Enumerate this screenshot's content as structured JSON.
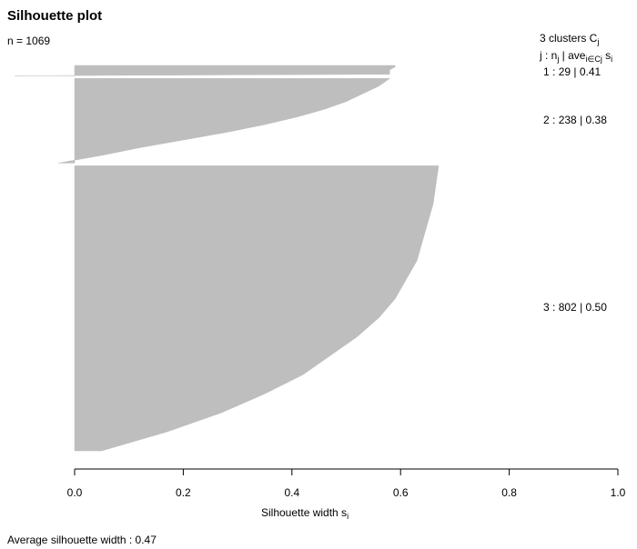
{
  "chart_data": {
    "type": "silhouette",
    "title": "Silhouette plot",
    "subtitle": "n = 1069",
    "legend_title": [
      "3  clusters  C",
      "j"
    ],
    "legend_header": [
      "j :  n",
      "j",
      " | ave",
      "i∈Cj",
      " s",
      "i"
    ],
    "legend_separators": [
      " :  ",
      "  | "
    ],
    "clusters": [
      {
        "j": 1,
        "n": 29,
        "ave": 0.41,
        "color": "#bebebe",
        "widths": [
          0.59,
          0.59,
          0.585,
          0.58,
          0.58,
          0.58,
          0.58,
          -0.11
        ]
      },
      {
        "j": 2,
        "n": 238,
        "ave": 0.38,
        "color": "#bebebe",
        "widths": [
          0.58,
          0.56,
          0.53,
          0.5,
          0.46,
          0.41,
          0.35,
          0.28,
          0.2,
          0.12,
          0.05,
          -0.03
        ]
      },
      {
        "j": 3,
        "n": 802,
        "ave": 0.5,
        "ave_label": "0.50",
        "color": "#bebebe",
        "widths": [
          0.67,
          0.665,
          0.66,
          0.65,
          0.64,
          0.63,
          0.61,
          0.59,
          0.56,
          0.52,
          0.47,
          0.42,
          0.35,
          0.27,
          0.17,
          0.05
        ]
      }
    ],
    "xlabel": [
      "Silhouette width s",
      "i"
    ],
    "xlim": [
      0,
      1
    ],
    "xticks": [
      {
        "value": 0,
        "label": "0.0"
      },
      0.2,
      0.4,
      0.6,
      0.8,
      {
        "value": 1,
        "label": "1.0"
      }
    ],
    "footer": "Average silhouette width : 0.47"
  }
}
